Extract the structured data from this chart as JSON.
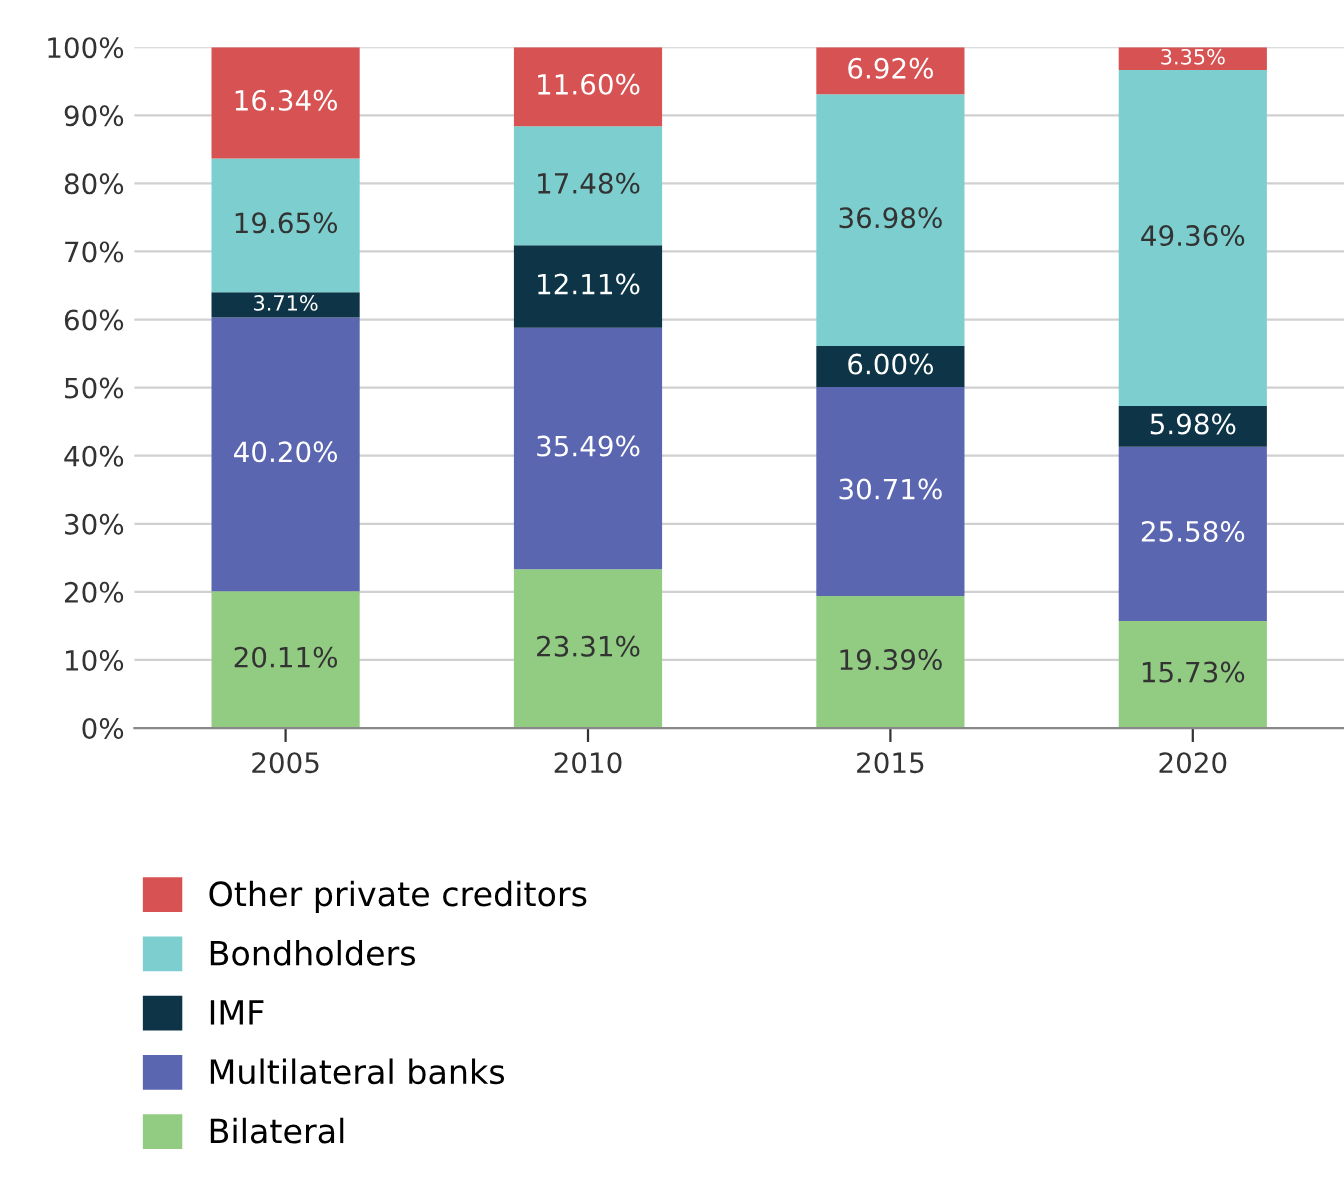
{
  "chart_data": {
    "type": "bar",
    "stacked": true,
    "categories": [
      "2005",
      "2010",
      "2015",
      "2020"
    ],
    "ylim": [
      0,
      100
    ],
    "yticks": [
      {
        "value": 0,
        "label": "0%"
      },
      {
        "value": 10,
        "label": "10%"
      },
      {
        "value": 20,
        "label": "20%"
      },
      {
        "value": 30,
        "label": "30%"
      },
      {
        "value": 40,
        "label": "40%"
      },
      {
        "value": 50,
        "label": "50%"
      },
      {
        "value": 60,
        "label": "60%"
      },
      {
        "value": 70,
        "label": "70%"
      },
      {
        "value": 80,
        "label": "80%"
      },
      {
        "value": 90,
        "label": "90%"
      },
      {
        "value": 100,
        "label": "100%"
      }
    ],
    "grid": "y",
    "legend": "bottom",
    "series": [
      {
        "name": "Bilateral",
        "color": "#92cc82",
        "values": [
          20.11,
          23.31,
          19.39,
          15.73
        ],
        "value_labels": [
          "20.11%",
          "23.31%",
          "19.39%",
          "15.73%"
        ]
      },
      {
        "name": "Multilateral banks",
        "color": "#5b66b0",
        "values": [
          40.2,
          35.49,
          30.71,
          25.58
        ],
        "value_labels": [
          "40.20%",
          "35.49%",
          "30.71%",
          "25.58%"
        ]
      },
      {
        "name": "IMF",
        "color": "#0e3447",
        "values": [
          3.71,
          12.11,
          6.0,
          5.98
        ],
        "value_labels": [
          "3.71%",
          "12.11%",
          "6.00%",
          "5.98%"
        ]
      },
      {
        "name": "Bondholders",
        "color": "#7dcfcf",
        "values": [
          19.65,
          17.48,
          36.98,
          49.36
        ],
        "value_labels": [
          "19.65%",
          "17.48%",
          "36.98%",
          "49.36%"
        ]
      },
      {
        "name": "Other private creditors",
        "color": "#d75252",
        "values": [
          16.34,
          11.6,
          6.92,
          3.35
        ],
        "value_labels": [
          "16.34%",
          "11.60%",
          "6.92%",
          "3.35%"
        ]
      }
    ]
  }
}
